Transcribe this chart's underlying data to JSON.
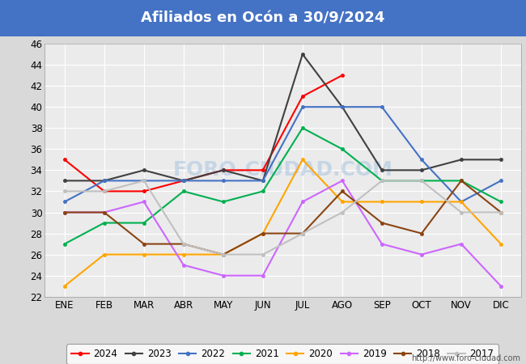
{
  "title": "Afiliados en Ocón a 30/9/2024",
  "title_color": "white",
  "title_bg_color": "#4472c4",
  "xlabel": "",
  "ylabel": "",
  "ylim": [
    22,
    46
  ],
  "yticks": [
    22,
    24,
    26,
    28,
    30,
    32,
    34,
    36,
    38,
    40,
    42,
    44,
    46
  ],
  "months": [
    "ENE",
    "FEB",
    "MAR",
    "ABR",
    "MAY",
    "JUN",
    "JUL",
    "AGO",
    "SEP",
    "OCT",
    "NOV",
    "DIC"
  ],
  "series": {
    "2024": {
      "color": "#ff0000",
      "values": [
        35,
        32,
        32,
        33,
        34,
        34,
        41,
        43,
        null,
        null,
        null,
        null
      ]
    },
    "2023": {
      "color": "#404040",
      "values": [
        33,
        33,
        34,
        33,
        34,
        33,
        45,
        40,
        34,
        34,
        35,
        35
      ]
    },
    "2022": {
      "color": "#4472c4",
      "values": [
        31,
        33,
        33,
        33,
        33,
        33,
        40,
        40,
        40,
        35,
        31,
        33
      ]
    },
    "2021": {
      "color": "#00b050",
      "values": [
        27,
        29,
        29,
        32,
        31,
        32,
        38,
        36,
        33,
        33,
        33,
        31
      ]
    },
    "2020": {
      "color": "#ffa500",
      "values": [
        23,
        26,
        26,
        26,
        26,
        28,
        35,
        31,
        31,
        31,
        31,
        27
      ]
    },
    "2019": {
      "color": "#cc66ff",
      "values": [
        30,
        30,
        31,
        25,
        24,
        24,
        31,
        33,
        27,
        26,
        27,
        23
      ]
    },
    "2018": {
      "color": "#8b4513",
      "values": [
        30,
        30,
        27,
        27,
        26,
        28,
        28,
        32,
        29,
        28,
        33,
        30
      ]
    },
    "2017": {
      "color": "#c0c0c0",
      "values": [
        32,
        32,
        33,
        27,
        26,
        26,
        28,
        30,
        33,
        33,
        30,
        30
      ]
    }
  },
  "legend_order": [
    "2024",
    "2023",
    "2022",
    "2021",
    "2020",
    "2019",
    "2018",
    "2017"
  ],
  "background_color": "#d9d9d9",
  "plot_bg_color": "#ebebeb",
  "grid_color": "white",
  "url": "http://www.foro-ciudad.com"
}
